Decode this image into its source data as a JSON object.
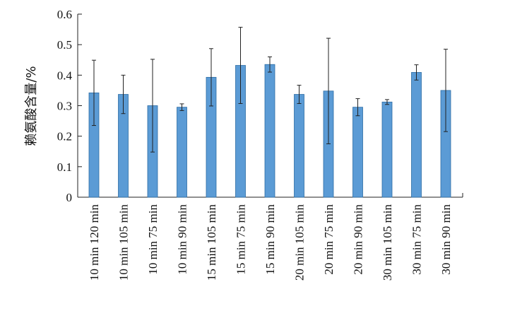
{
  "chart_data": {
    "type": "bar",
    "ylabel": "赖氨酸含量/%",
    "ylim": [
      0,
      0.6
    ],
    "yticks": [
      0,
      0.1,
      0.2,
      0.3,
      0.4,
      0.5,
      0.6
    ],
    "ytick_labels": [
      "0",
      "0.1",
      "0.2",
      "0.3",
      "0.4",
      "0.5",
      "0.6"
    ],
    "categories": [
      "10 min 120 min",
      "10 min 105 min",
      "10 min 75 min",
      "10 min 90 min",
      "15 min 105 min",
      "15 min 75 min",
      "15 min 90 min",
      "20 min 105 min",
      "20 min 75 min",
      "20 min 90 min",
      "30 min 105 min",
      "30 min 75 min",
      "30 min 90 min"
    ],
    "values": [
      0.342,
      0.337,
      0.3,
      0.295,
      0.393,
      0.432,
      0.435,
      0.337,
      0.348,
      0.295,
      0.312,
      0.409,
      0.35
    ],
    "errors": [
      0.107,
      0.063,
      0.152,
      0.011,
      0.094,
      0.125,
      0.025,
      0.03,
      0.173,
      0.028,
      0.008,
      0.025,
      0.135
    ],
    "bar_color": "#5b9bd5",
    "bar_edge_color": "#2e6da4",
    "grid": false,
    "legend": "none"
  }
}
